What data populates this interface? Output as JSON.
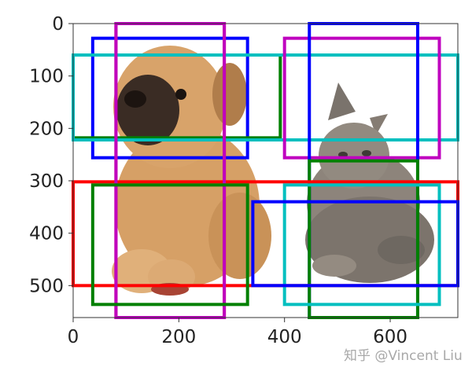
{
  "x_ticks": [
    {
      "value": 0,
      "label": "0"
    },
    {
      "value": 200,
      "label": "200"
    },
    {
      "value": 400,
      "label": "400"
    },
    {
      "value": 600,
      "label": "600"
    }
  ],
  "y_ticks": [
    {
      "value": 0,
      "label": "0"
    },
    {
      "value": 100,
      "label": "100"
    },
    {
      "value": 200,
      "label": "200"
    },
    {
      "value": 300,
      "label": "300"
    },
    {
      "value": 400,
      "label": "400"
    },
    {
      "value": 500,
      "label": "500"
    }
  ],
  "axis_range": {
    "x": [
      0,
      728
    ],
    "y": [
      0,
      561
    ]
  },
  "image_subject": "puppy and kitten photo",
  "watermark": "知乎 @Vincent Liu",
  "boxes": [
    {
      "color": "#0000ff",
      "x0": 37,
      "y0": 28,
      "x1": 330,
      "y1": 256
    },
    {
      "color": "#008000",
      "x0": 0,
      "y0": 60,
      "x1": 392,
      "y1": 218
    },
    {
      "color": "#ff0000",
      "x0": 81,
      "y0": 0,
      "x1": 286,
      "y1": 561
    },
    {
      "color": "#00bfbf",
      "x0": 0,
      "y0": 60,
      "x1": 728,
      "y1": 222
    },
    {
      "color": "#bf00bf",
      "x0": 400,
      "y0": 28,
      "x1": 693,
      "y1": 256
    },
    {
      "color": "#0000ff",
      "x0": 447,
      "y0": 0,
      "x1": 652,
      "y1": 561
    },
    {
      "color": "#008000",
      "x0": 447,
      "y0": 262,
      "x1": 652,
      "y1": 561
    },
    {
      "color": "#ff0000",
      "x0": 0,
      "y0": 302,
      "x1": 728,
      "y1": 500
    },
    {
      "color": "#bf00bf",
      "x0": 81,
      "y0": 0,
      "x1": 286,
      "y1": 561
    },
    {
      "color": "#008000",
      "x0": 37,
      "y0": 308,
      "x1": 330,
      "y1": 536
    },
    {
      "color": "#00bfbf",
      "x0": 400,
      "y0": 308,
      "x1": 693,
      "y1": 536
    },
    {
      "color": "#0000ff",
      "x0": 340,
      "y0": 340,
      "x1": 728,
      "y1": 500
    }
  ]
}
